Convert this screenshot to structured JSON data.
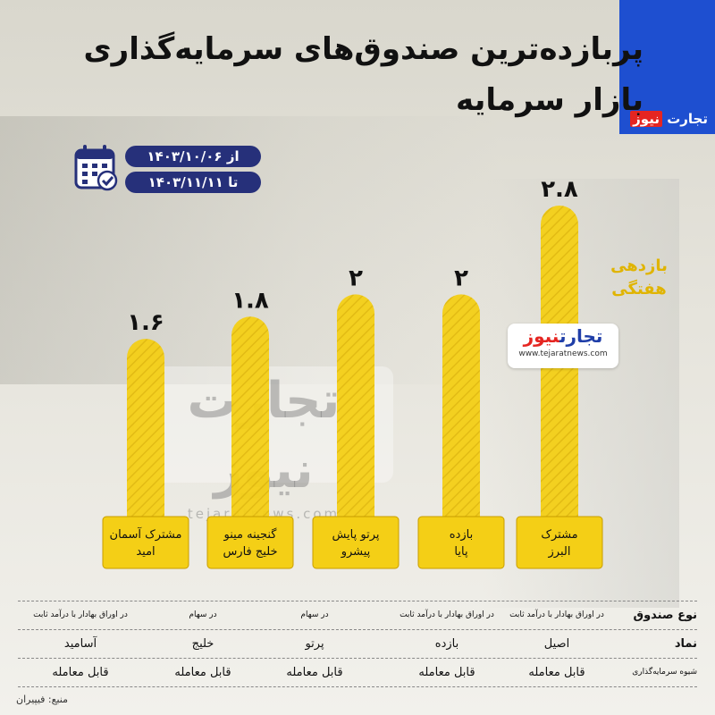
{
  "title": {
    "line1": "پربازده‌ترین صندوق‌های سرمایه‌گذاری",
    "line2": "بازار سرمایه"
  },
  "brand": {
    "name_part1": "تجارت",
    "name_part2": "نیوز",
    "url": "www.tejaratnews.com",
    "url_big": "tejaratnews.com",
    "colors": {
      "blue": "#1e4fd0",
      "red": "#e52521"
    }
  },
  "date": {
    "from": "از ۱۴۰۳/۱۰/۰۶",
    "to": "تا ۱۴۰۳/۱۱/۱۱"
  },
  "side_label": {
    "line1": "بازدهی",
    "line2": "هفتگی"
  },
  "chart_data": {
    "type": "bar",
    "categories": [
      "مشترک آسمان امید",
      "گنجینه مینو خلیج فارس",
      "پرتو پایش پیشرو",
      "بازده پایا",
      "مشترک البرز"
    ],
    "category_lines": [
      [
        "مشترک آسمان",
        "امید"
      ],
      [
        "گنجینه مینو",
        "خلیج فارس"
      ],
      [
        "پرتو پایش",
        "پیشرو"
      ],
      [
        "بازده",
        "پایا"
      ],
      [
        "مشترک",
        "البرز"
      ]
    ],
    "values": [
      1.6,
      1.8,
      2,
      2,
      2.8
    ],
    "value_labels": [
      "۱.۶",
      "۱.۸",
      "۲",
      "۲",
      "۲.۸"
    ],
    "title": "",
    "xlabel": "",
    "ylabel": "",
    "ylim": [
      0,
      2.8
    ],
    "bar_color": "#f4cf16"
  },
  "table": {
    "headers": [
      "نوع صندوق",
      "نماد",
      "شیوه سرمایه‌گذاری"
    ],
    "fund_type": [
      "در اوراق بهادار با درآمد ثابت",
      "در سهام",
      "در سهام",
      "در اوراق بهادار با درآمد ثابت",
      "در اوراق بهادار با درآمد ثابت"
    ],
    "symbol": [
      "آسامید",
      "خلیج",
      "پرتو",
      "بازده",
      "اصیل"
    ],
    "investment": [
      "قابل معامله",
      "قابل معامله",
      "قابل معامله",
      "قابل معامله",
      "قابل معامله"
    ]
  },
  "source": "منبع: فیپیران"
}
